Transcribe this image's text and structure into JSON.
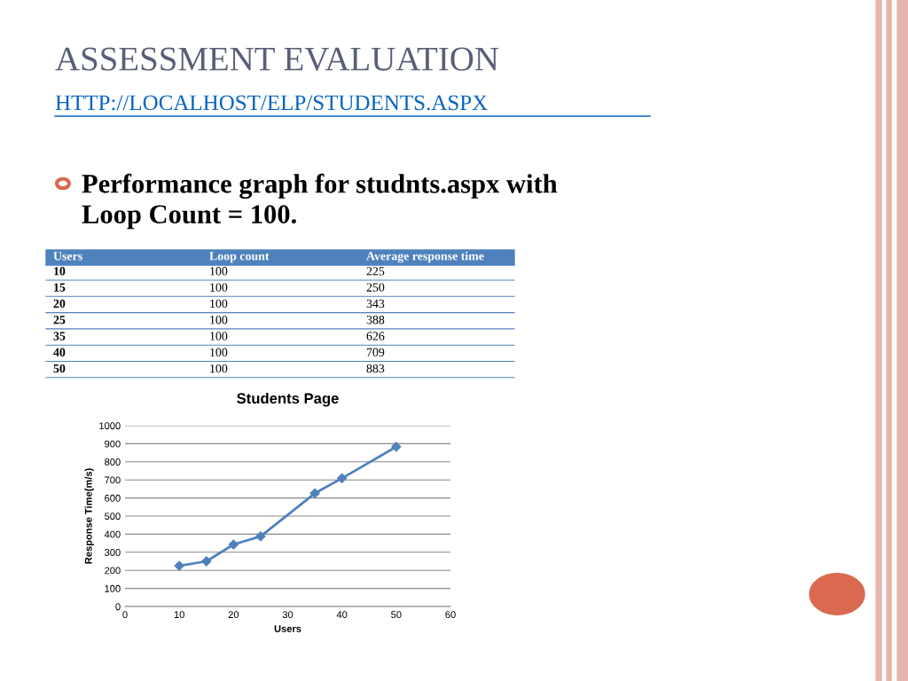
{
  "chart_data": {
    "type": "line",
    "title": "Students Page",
    "xlabel": "Users",
    "ylabel": "Response Time(m/s)",
    "annotations": [
      "ASSESSMENT EVALUATION",
      "HTTP://LOCALHOST/ELP/STUDENTS.ASPX",
      "Performance graph for studnts.aspx with\nLoop Count = 100.",
      "Users",
      "Loop count",
      "Average response time",
      "10",
      "100",
      "225",
      "15",
      "100",
      "250",
      "20",
      "100",
      "343",
      "25",
      "100",
      "388",
      "35",
      "100",
      "626",
      "40",
      "100",
      "709",
      "50",
      "100",
      "883"
    ],
    "x": [
      10,
      15,
      20,
      25,
      35,
      40,
      50
    ],
    "series": [
      {
        "color": "#4f81bd",
        "values": [
          225,
          250,
          343,
          388,
          626,
          709,
          883
        ]
      }
    ],
    "xlim": [
      0,
      60
    ],
    "xticks": [
      0,
      10,
      20,
      30,
      40,
      50,
      60
    ],
    "ylim": [
      0,
      1000
    ],
    "yticks": [
      0,
      100,
      200,
      300,
      400,
      500,
      600,
      700,
      800,
      900,
      1000
    ],
    "grid": "y",
    "marker": "diamond",
    "line_style": "solid",
    "legend": false
  }
}
